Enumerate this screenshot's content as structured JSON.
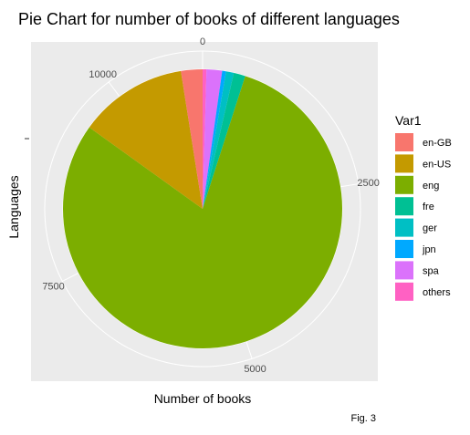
{
  "chart_data": {
    "type": "pie",
    "title": "Pie Chart for number of books of different languages",
    "xlabel": "Number of books",
    "ylabel": "Languages",
    "legend_title": "Var1",
    "legend_position": "right",
    "caption": "Fig. 3",
    "total": 11127,
    "ticks": [
      {
        "value": 0,
        "label": "0"
      },
      {
        "value": 2500,
        "label": "2500"
      },
      {
        "value": 5000,
        "label": "5000"
      },
      {
        "value": 7500,
        "label": "7500"
      },
      {
        "value": 10000,
        "label": "10000"
      }
    ],
    "grid": true,
    "slices": [
      {
        "name": "others",
        "value": 50,
        "color": "#FF61C3"
      },
      {
        "name": "spa",
        "value": 200,
        "color": "#DB72FB"
      },
      {
        "name": "jpn",
        "value": 50,
        "color": "#00A9FF"
      },
      {
        "name": "ger",
        "value": 100,
        "color": "#00BFC4"
      },
      {
        "name": "fre",
        "value": 150,
        "color": "#00C094"
      },
      {
        "name": "eng",
        "value": 8900,
        "color": "#7CAE00"
      },
      {
        "name": "en-US",
        "value": 1400,
        "color": "#C49A00"
      },
      {
        "name": "en-GB",
        "value": 277,
        "color": "#F8766D"
      }
    ],
    "legend_order": [
      "en-GB",
      "en-US",
      "eng",
      "fre",
      "ger",
      "jpn",
      "spa",
      "others"
    ]
  }
}
